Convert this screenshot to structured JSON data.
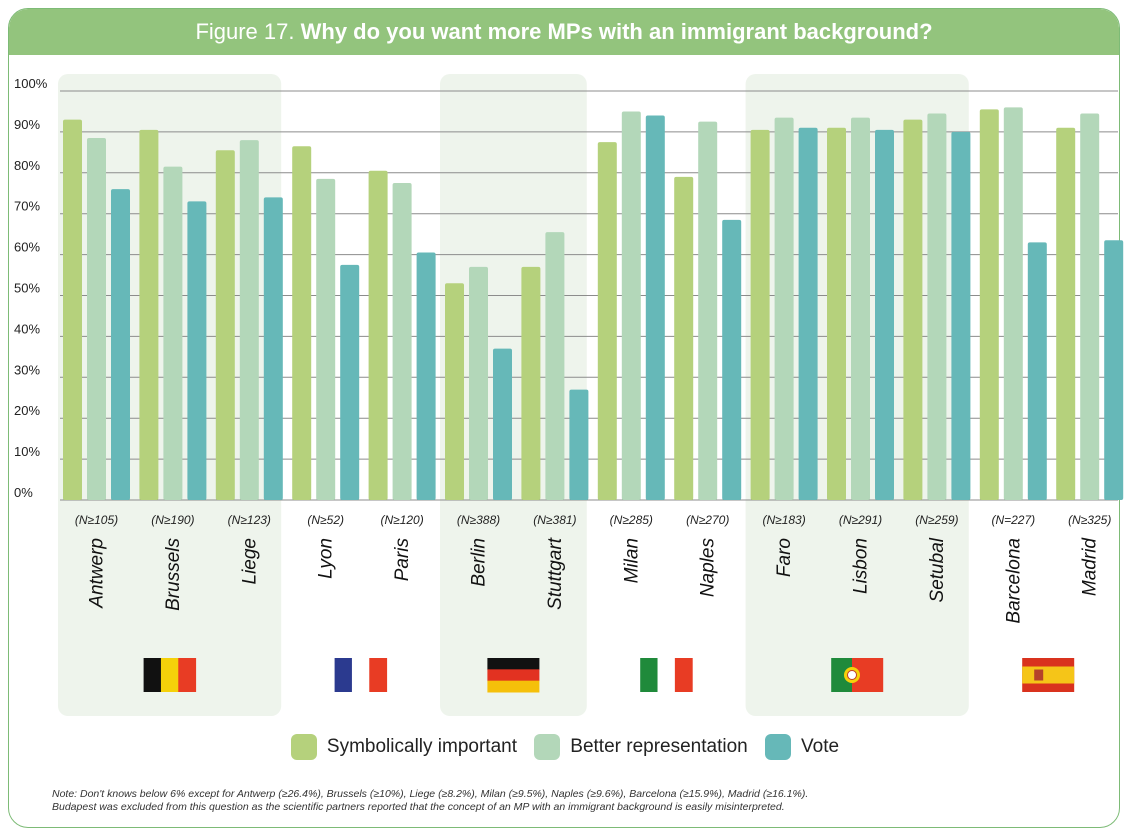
{
  "title": {
    "prefix": "Figure 17.",
    "main": "Why do you want more MPs with an immigrant background?"
  },
  "colors": {
    "symbolic": "#b5d17c",
    "representation": "#b3d7b9",
    "vote": "#66b8b8",
    "group_bg": "#eef4ec",
    "grid": "#8c8c8c",
    "frame": "#7dbb76"
  },
  "chart_data": {
    "type": "bar",
    "ylim": [
      0,
      100
    ],
    "yticks": [
      "0%",
      "10%",
      "20%",
      "30%",
      "40%",
      "50%",
      "60%",
      "70%",
      "80%",
      "90%",
      "100%"
    ],
    "categories": [
      "Antwerp",
      "Brussels",
      "Liege",
      "Lyon",
      "Paris",
      "Berlin",
      "Stuttgart",
      "Milan",
      "Naples",
      "Faro",
      "Lisbon",
      "Setubal",
      "Barcelona",
      "Madrid"
    ],
    "sample_sizes": [
      "(N≥105)",
      "(N≥190)",
      "(N≥123)",
      "(N≥52)",
      "(N≥120)",
      "(N≥388)",
      "(N≥381)",
      "(N≥285)",
      "(N≥270)",
      "(N≥183)",
      "(N≥291)",
      "(N≥259)",
      "(N=227)",
      "(N≥325)"
    ],
    "series": [
      {
        "name": "Symbolically important",
        "color": "#b5d17c",
        "values": [
          93,
          90.5,
          85.5,
          86.5,
          80.5,
          53,
          57,
          87.5,
          79,
          90.5,
          91,
          93,
          95.5,
          91
        ]
      },
      {
        "name": "Better representation",
        "color": "#b3d7b9",
        "values": [
          88.5,
          81.5,
          88,
          78.5,
          77.5,
          57,
          65.5,
          95,
          92.5,
          93.5,
          93.5,
          94.5,
          96,
          94.5
        ]
      },
      {
        "name": "Vote",
        "color": "#66b8b8",
        "values": [
          76,
          73,
          74,
          57.5,
          60.5,
          37,
          27,
          94,
          68.5,
          91,
          90.5,
          90,
          63,
          63.5
        ]
      }
    ],
    "country_groups": [
      {
        "flag": "belgium-flag",
        "cities": [
          0,
          1,
          2
        ],
        "shaded": true
      },
      {
        "flag": "france-flag",
        "cities": [
          3,
          4
        ],
        "shaded": false
      },
      {
        "flag": "germany-flag",
        "cities": [
          5,
          6
        ],
        "shaded": true
      },
      {
        "flag": "italy-flag",
        "cities": [
          7,
          8
        ],
        "shaded": false
      },
      {
        "flag": "portugal-flag",
        "cities": [
          9,
          10,
          11
        ],
        "shaded": true
      },
      {
        "flag": "spain-flag",
        "cities": [
          12,
          13
        ],
        "shaded": false
      }
    ],
    "legend": [
      "Symbolically important",
      "Better representation",
      "Vote"
    ]
  },
  "note": {
    "line1": "Note: Don't knows below 6% except for Antwerp (≥26.4%), Brussels (≥10%), Liege (≥8.2%), Milan (≥9.5%), Naples (≥9.6%), Barcelona (≥15.9%), Madrid (≥16.1%).",
    "line2": "Budapest was excluded from this question as the scientific partners reported that the concept of an MP with an immigrant background is easily misinterpreted."
  }
}
